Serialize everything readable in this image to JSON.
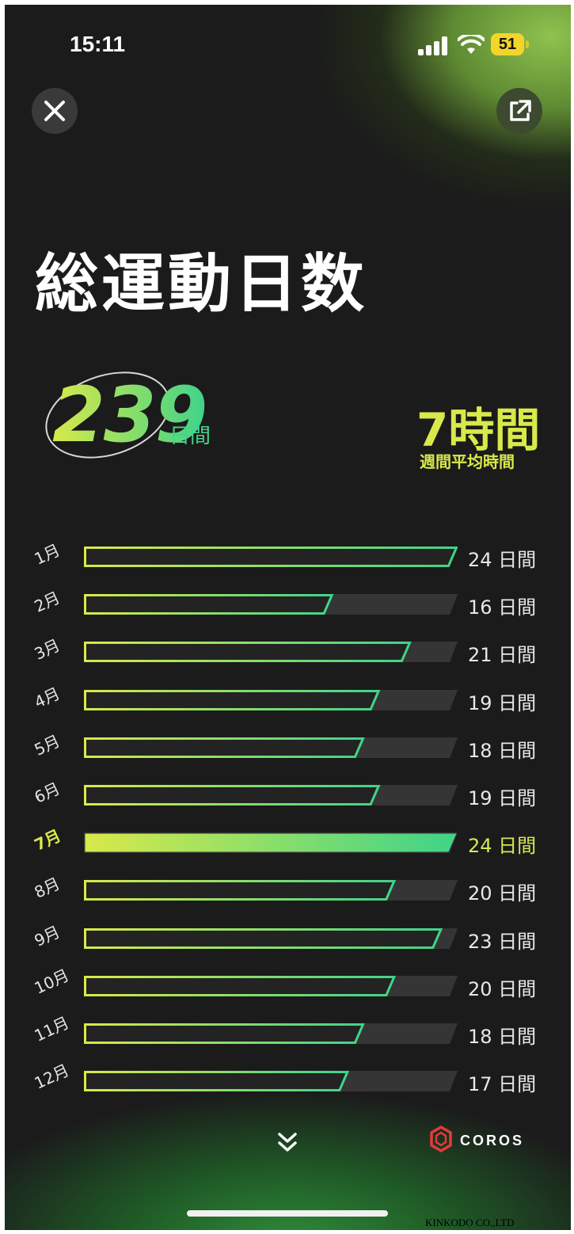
{
  "status_bar": {
    "time": "15:11",
    "battery": "51"
  },
  "header": {
    "close_icon": "close-icon",
    "share_icon": "share-icon"
  },
  "title": "総運動日数",
  "summary": {
    "total_days": "239",
    "total_unit": "日間",
    "weekly_avg": "7時間",
    "weekly_label": "週間平均時間"
  },
  "chart_data": {
    "type": "bar",
    "categories": [
      "1月",
      "2月",
      "3月",
      "4月",
      "5月",
      "6月",
      "7月",
      "8月",
      "9月",
      "10月",
      "11月",
      "12月"
    ],
    "values": [
      24,
      16,
      21,
      19,
      18,
      19,
      24,
      20,
      23,
      20,
      18,
      17
    ],
    "value_labels": [
      "24 日間",
      "16 日間",
      "21 日間",
      "19 日間",
      "18 日間",
      "19 日間",
      "24 日間",
      "20 日間",
      "23 日間",
      "20 日間",
      "18 日間",
      "17 日間"
    ],
    "highlight": "7月",
    "max": 24,
    "colors": {
      "start": "#d8e94a",
      "end": "#3fd38a",
      "track": "#3a3a3a"
    }
  },
  "footer": {
    "brand": "COROS",
    "watermark": "KINKODO CO.,LTD"
  }
}
